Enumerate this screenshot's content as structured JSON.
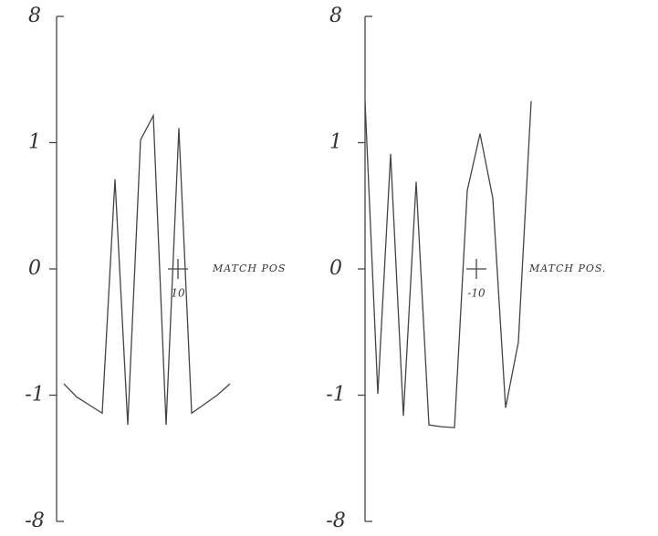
{
  "chart_data": [
    {
      "type": "line",
      "color": "#444",
      "ylim": [
        -8,
        8
      ],
      "yticks": [
        8,
        1,
        0,
        -1,
        -8
      ],
      "yscale": "piecewise",
      "values": [
        -0.91,
        -1.1,
        -1.55,
        -2.0,
        0.71,
        -2.65,
        1.15,
        2.5,
        -2.65,
        1.8,
        -2.0,
        -1.5,
        -1.0,
        -0.91
      ],
      "annotation": {
        "text": "MATCH POS",
        "marker_label": "10"
      }
    },
    {
      "type": "line",
      "color": "#444",
      "ylim": [
        -8,
        8
      ],
      "yticks": [
        8,
        1,
        0,
        -1,
        -8
      ],
      "yscale": "piecewise",
      "values": [
        3.3,
        -0.99,
        0.91,
        -2.15,
        0.69,
        -2.65,
        -2.75,
        -2.8,
        0.62,
        1.5,
        0.56,
        -1.7,
        -0.58,
        3.3
      ],
      "annotation": {
        "text": "MATCH POS.",
        "marker_label": "-10"
      }
    }
  ]
}
